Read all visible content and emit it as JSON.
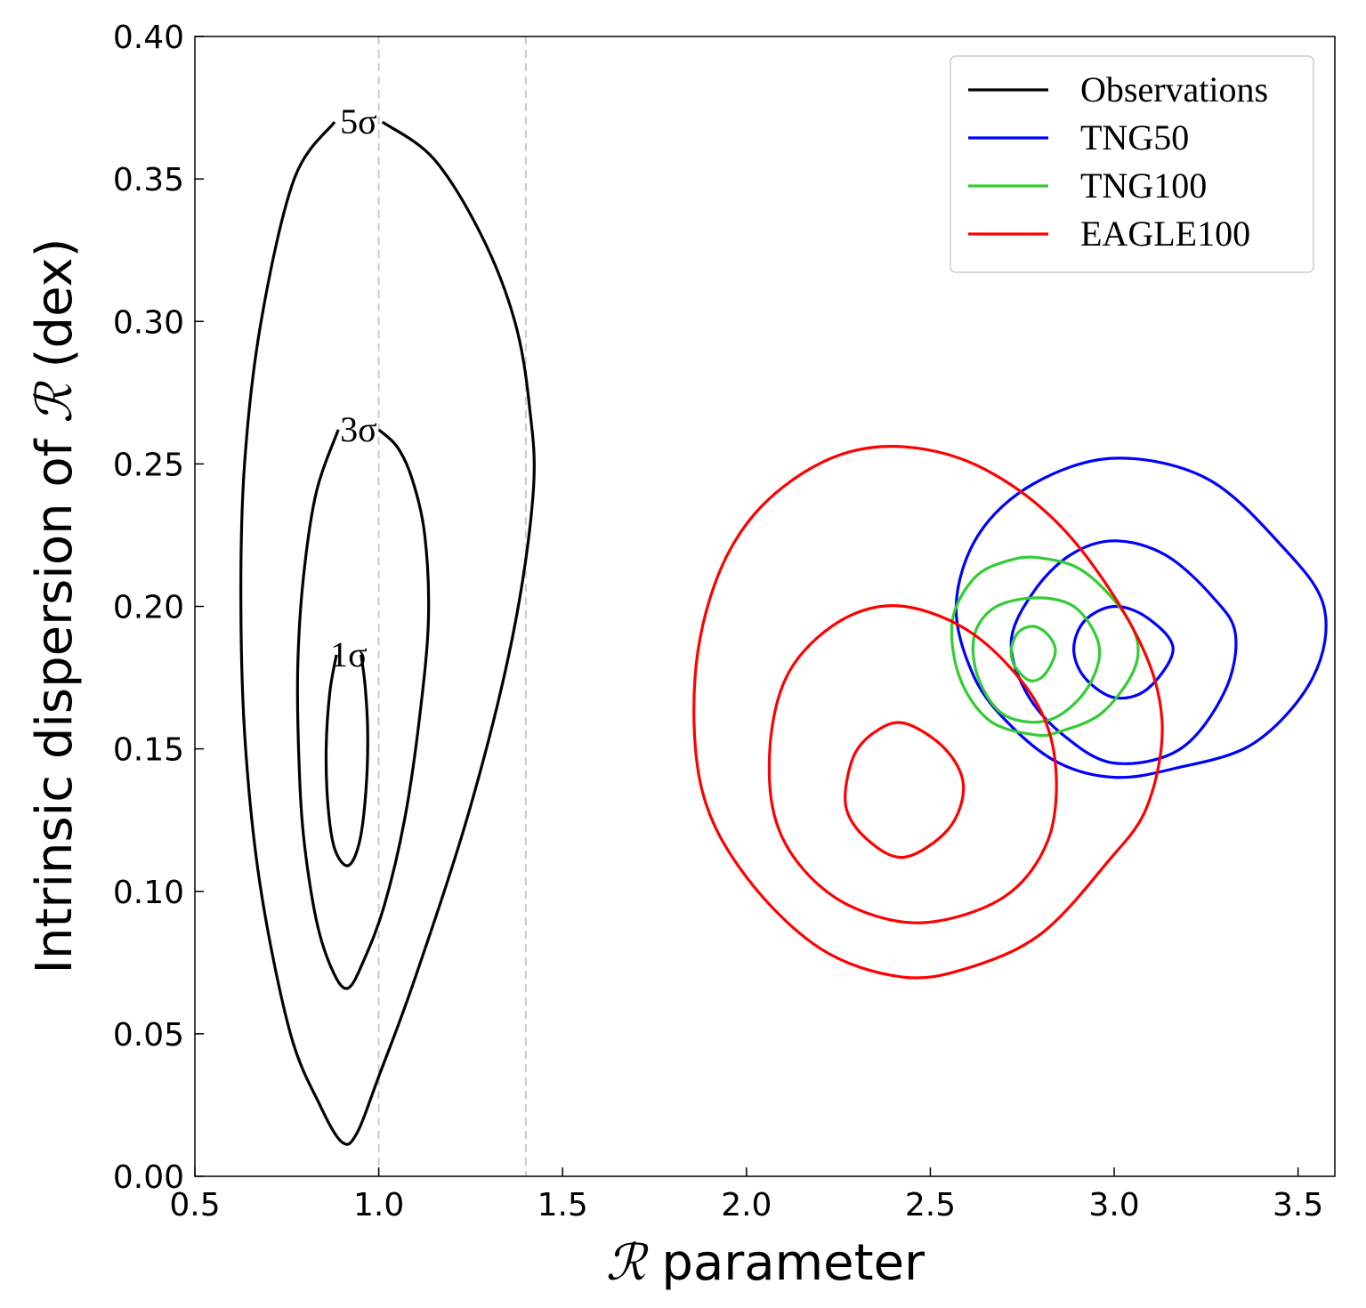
{
  "chart_data": {
    "type": "contour",
    "xlabel": {
      "symbol": "ℛ",
      "text": " parameter"
    },
    "ylabel": {
      "prefix": "Intrinsic dispersion of ",
      "symbol": "ℛ",
      "suffix": " (dex)"
    },
    "xlim": [
      0.5,
      3.6
    ],
    "ylim": [
      0.0,
      0.4
    ],
    "x_ticks": [
      0.5,
      1.0,
      1.5,
      2.0,
      2.5,
      3.0,
      3.5
    ],
    "x_tick_labels": [
      "0.5",
      "1.0",
      "1.5",
      "2.0",
      "2.5",
      "3.0",
      "3.5"
    ],
    "y_ticks": [
      0.0,
      0.05,
      0.1,
      0.15,
      0.2,
      0.25,
      0.3,
      0.35,
      0.4
    ],
    "y_tick_labels": [
      "0.00",
      "0.05",
      "0.10",
      "0.15",
      "0.20",
      "0.25",
      "0.30",
      "0.35",
      "0.40"
    ],
    "reference_lines_x": [
      1.0,
      1.4
    ],
    "legend_position": "top-right",
    "series": [
      {
        "name": "Observations",
        "color": "#000000",
        "contours": [
          {
            "level": "1σ",
            "label": "1σ",
            "points": [
              [
                0.885,
                0.183
              ],
              [
                0.867,
                0.17
              ],
              [
                0.857,
                0.15
              ],
              [
                0.862,
                0.13
              ],
              [
                0.88,
                0.115
              ],
              [
                0.916,
                0.109
              ],
              [
                0.947,
                0.117
              ],
              [
                0.965,
                0.135
              ],
              [
                0.97,
                0.155
              ],
              [
                0.963,
                0.172
              ],
              [
                0.952,
                0.183
              ]
            ]
          },
          {
            "level": "3σ",
            "label": "3σ",
            "points": [
              [
                0.89,
                0.262
              ],
              [
                0.83,
                0.24
              ],
              [
                0.795,
                0.21
              ],
              [
                0.78,
                0.18
              ],
              [
                0.782,
                0.15
              ],
              [
                0.795,
                0.12
              ],
              [
                0.83,
                0.09
              ],
              [
                0.875,
                0.072
              ],
              [
                0.916,
                0.066
              ],
              [
                0.96,
                0.076
              ],
              [
                1.015,
                0.095
              ],
              [
                1.07,
                0.125
              ],
              [
                1.11,
                0.16
              ],
              [
                1.135,
                0.195
              ],
              [
                1.125,
                0.225
              ],
              [
                1.09,
                0.245
              ],
              [
                1.05,
                0.256
              ],
              [
                1.0,
                0.262
              ]
            ]
          },
          {
            "level": "5σ",
            "label": "5σ",
            "points": [
              [
                0.88,
                0.37
              ],
              [
                0.77,
                0.35
              ],
              [
                0.68,
                0.3
              ],
              [
                0.635,
                0.25
              ],
              [
                0.625,
                0.2
              ],
              [
                0.638,
                0.15
              ],
              [
                0.68,
                0.1
              ],
              [
                0.76,
                0.05
              ],
              [
                0.84,
                0.025
              ],
              [
                0.9,
                0.012
              ],
              [
                0.94,
                0.015
              ],
              [
                1.0,
                0.035
              ],
              [
                1.1,
                0.07
              ],
              [
                1.25,
                0.13
              ],
              [
                1.365,
                0.19
              ],
              [
                1.42,
                0.24
              ],
              [
                1.41,
                0.27
              ],
              [
                1.37,
                0.3
              ],
              [
                1.28,
                0.33
              ],
              [
                1.15,
                0.357
              ],
              [
                1.01,
                0.37
              ]
            ]
          }
        ]
      },
      {
        "name": "TNG50",
        "color": "#0000ff",
        "contours": [
          {
            "level": "1σ",
            "points": [
              [
                3.0,
                0.2
              ],
              [
                3.09,
                0.196
              ],
              [
                3.16,
                0.185
              ],
              [
                3.09,
                0.171
              ],
              [
                3.0,
                0.168
              ],
              [
                2.92,
                0.175
              ],
              [
                2.89,
                0.185
              ],
              [
                2.92,
                0.195
              ]
            ]
          },
          {
            "level": "3σ",
            "points": [
              [
                3.0,
                0.223
              ],
              [
                3.14,
                0.218
              ],
              [
                3.27,
                0.203
              ],
              [
                3.33,
                0.19
              ],
              [
                3.3,
                0.17
              ],
              [
                3.18,
                0.15
              ],
              [
                3.0,
                0.145
              ],
              [
                2.86,
                0.155
              ],
              [
                2.76,
                0.17
              ],
              [
                2.72,
                0.188
              ],
              [
                2.78,
                0.205
              ],
              [
                2.88,
                0.218
              ]
            ]
          },
          {
            "level": "5σ",
            "points": [
              [
                3.0,
                0.252
              ],
              [
                3.25,
                0.245
              ],
              [
                3.45,
                0.222
              ],
              [
                3.57,
                0.2
              ],
              [
                3.54,
                0.175
              ],
              [
                3.38,
                0.152
              ],
              [
                3.16,
                0.143
              ],
              [
                3.0,
                0.14
              ],
              [
                2.85,
                0.145
              ],
              [
                2.72,
                0.158
              ],
              [
                2.62,
                0.175
              ],
              [
                2.57,
                0.2
              ],
              [
                2.63,
                0.225
              ],
              [
                2.78,
                0.243
              ]
            ]
          }
        ]
      },
      {
        "name": "TNG100",
        "color": "#33cc33",
        "contours": [
          {
            "level": "1σ",
            "points": [
              [
                2.78,
                0.193
              ],
              [
                2.82,
                0.19
              ],
              [
                2.84,
                0.184
              ],
              [
                2.81,
                0.176
              ],
              [
                2.77,
                0.174
              ],
              [
                2.73,
                0.179
              ],
              [
                2.72,
                0.185
              ],
              [
                2.74,
                0.191
              ]
            ]
          },
          {
            "level": "3σ",
            "points": [
              [
                2.8,
                0.203
              ],
              [
                2.9,
                0.199
              ],
              [
                2.96,
                0.185
              ],
              [
                2.92,
                0.17
              ],
              [
                2.82,
                0.16
              ],
              [
                2.7,
                0.162
              ],
              [
                2.63,
                0.175
              ],
              [
                2.62,
                0.19
              ],
              [
                2.68,
                0.2
              ]
            ]
          },
          {
            "level": "5σ",
            "points": [
              [
                2.8,
                0.217
              ],
              [
                2.92,
                0.212
              ],
              [
                3.04,
                0.195
              ],
              [
                3.06,
                0.18
              ],
              [
                2.97,
                0.163
              ],
              [
                2.85,
                0.156
              ],
              [
                2.78,
                0.155
              ],
              [
                2.66,
                0.16
              ],
              [
                2.58,
                0.175
              ],
              [
                2.56,
                0.195
              ],
              [
                2.62,
                0.21
              ],
              [
                2.71,
                0.216
              ]
            ]
          }
        ]
      },
      {
        "name": "EAGLE100",
        "color": "#ff0000",
        "contours": [
          {
            "level": "1σ",
            "points": [
              [
                2.43,
                0.159
              ],
              [
                2.54,
                0.15
              ],
              [
                2.59,
                0.137
              ],
              [
                2.55,
                0.122
              ],
              [
                2.43,
                0.112
              ],
              [
                2.33,
                0.118
              ],
              [
                2.27,
                0.13
              ],
              [
                2.29,
                0.147
              ],
              [
                2.35,
                0.156
              ]
            ]
          },
          {
            "level": "3σ",
            "points": [
              [
                2.43,
                0.2
              ],
              [
                2.62,
                0.19
              ],
              [
                2.78,
                0.168
              ],
              [
                2.84,
                0.145
              ],
              [
                2.82,
                0.118
              ],
              [
                2.7,
                0.098
              ],
              [
                2.48,
                0.089
              ],
              [
                2.28,
                0.095
              ],
              [
                2.14,
                0.11
              ],
              [
                2.07,
                0.13
              ],
              [
                2.07,
                0.158
              ],
              [
                2.13,
                0.18
              ],
              [
                2.27,
                0.196
              ]
            ]
          },
          {
            "level": "5σ",
            "points": [
              [
                2.43,
                0.256
              ],
              [
                2.65,
                0.248
              ],
              [
                2.87,
                0.226
              ],
              [
                3.06,
                0.19
              ],
              [
                3.13,
                0.16
              ],
              [
                3.09,
                0.13
              ],
              [
                2.98,
                0.11
              ],
              [
                2.8,
                0.085
              ],
              [
                2.6,
                0.073
              ],
              [
                2.42,
                0.07
              ],
              [
                2.2,
                0.08
              ],
              [
                2.0,
                0.105
              ],
              [
                1.88,
                0.135
              ],
              [
                1.86,
                0.175
              ],
              [
                1.92,
                0.21
              ],
              [
                2.04,
                0.235
              ],
              [
                2.23,
                0.252
              ]
            ]
          }
        ]
      }
    ]
  }
}
